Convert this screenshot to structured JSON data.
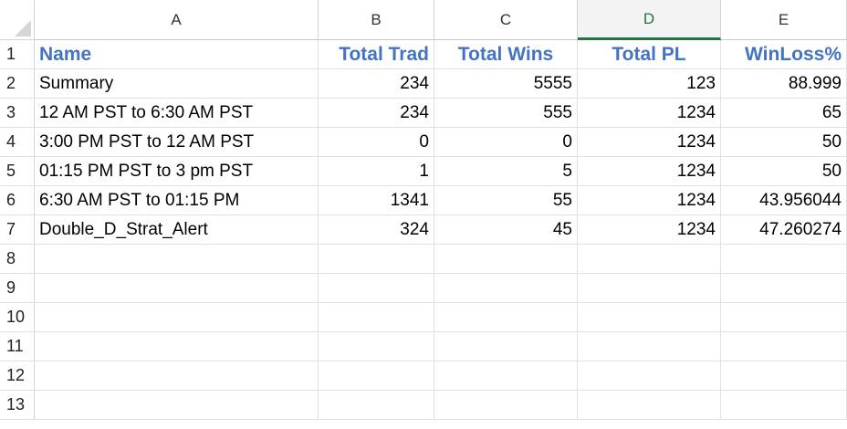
{
  "columns": [
    "A",
    "B",
    "C",
    "D",
    "E"
  ],
  "rows": [
    "1",
    "2",
    "3",
    "4",
    "5",
    "6",
    "7",
    "8",
    "9",
    "10",
    "11",
    "12",
    "13"
  ],
  "header_row": [
    "Name",
    "Total Trad",
    "Total Wins",
    "Total PL",
    "WinLoss%"
  ],
  "data_rows": [
    [
      "Summary",
      "234",
      "5555",
      "123",
      "88.999"
    ],
    [
      "12 AM PST to 6:30 AM PST",
      "234",
      "555",
      "1234",
      "65"
    ],
    [
      "3:00 PM PST to 12 AM PST",
      "0",
      "0",
      "1234",
      "50"
    ],
    [
      "01:15 PM PST to 3 pm PST",
      "1",
      "5",
      "1234",
      "50"
    ],
    [
      "6:30 AM PST to 01:15 PM",
      "1341",
      "55",
      "1234",
      "43.956044"
    ],
    [
      "Double_D_Strat_Alert",
      "324",
      "45",
      "1234",
      "47.260274"
    ]
  ],
  "active_column": "D",
  "colors": {
    "header_text": "#4472c4",
    "active_column": "#217346"
  }
}
